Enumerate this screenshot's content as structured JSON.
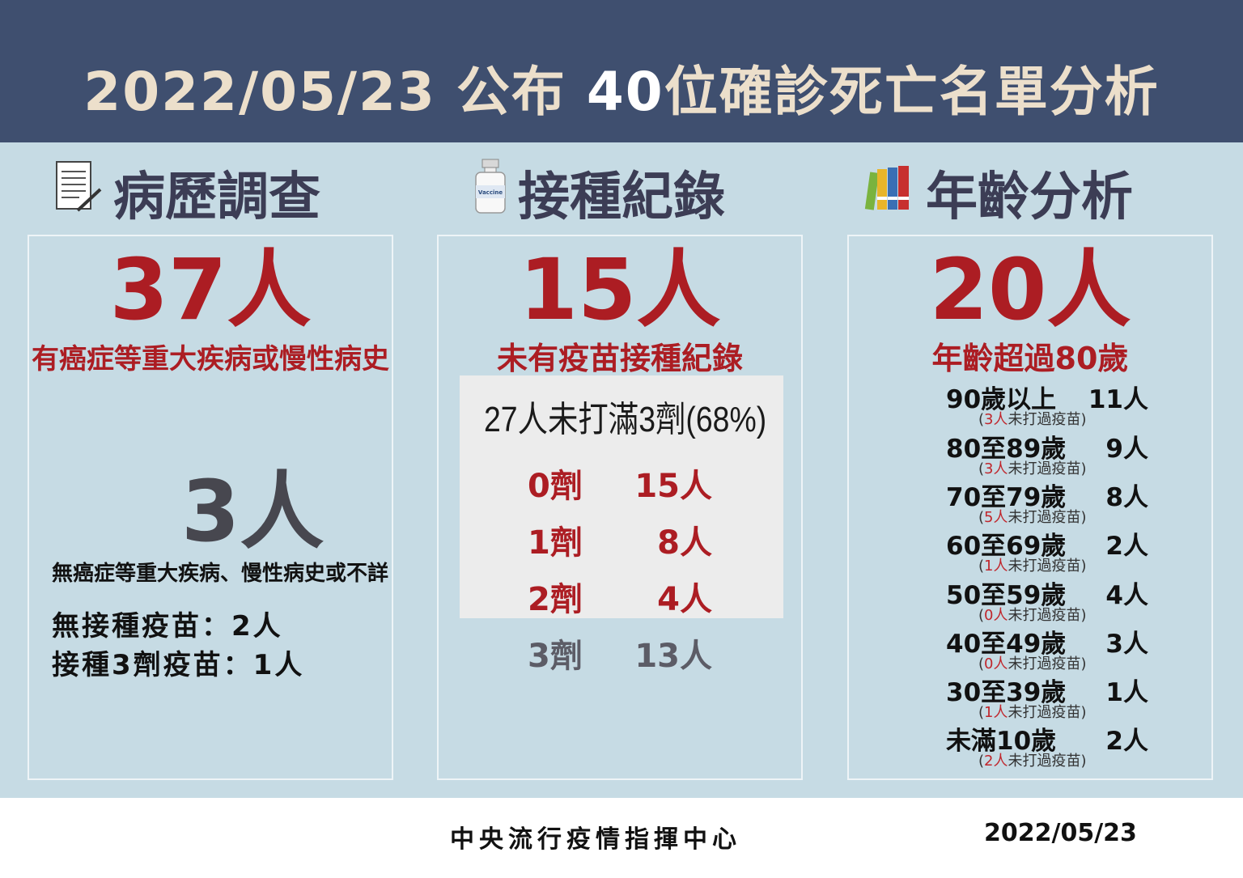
{
  "header": {
    "date": "2022/05/23",
    "pub": "公布",
    "count": "40",
    "rest": "位確診死亡名單分析"
  },
  "col1": {
    "title": "病歷調查",
    "big1": "37人",
    "sub1": "有癌症等重大疾病或慢性病史",
    "big2": "3人",
    "sub2": "無癌症等重大疾病、慢性病史或不詳",
    "line1": "無接種疫苗：2人",
    "line2": "接種3劑疫苗：1人"
  },
  "col2": {
    "title": "接種紀錄",
    "icon_label": "Vaccine",
    "big": "15人",
    "sub": "未有疫苗接種紀錄",
    "box_head": "27人未打滿3劑(68%)",
    "doses": [
      {
        "label": "0劑",
        "value": "15人"
      },
      {
        "label": "1劑",
        "value": "8人"
      },
      {
        "label": "2劑",
        "value": "4人"
      },
      {
        "label": "3劑",
        "value": "13人"
      }
    ]
  },
  "col3": {
    "title": "年齡分析",
    "big": "20人",
    "sub": "年齡超過80歲",
    "note_suffix": "未打過疫苗",
    "ages": [
      {
        "label": "90歲以上",
        "value": "11人",
        "unvax": "3人"
      },
      {
        "label": "80至89歲",
        "value": "9人",
        "unvax": "3人"
      },
      {
        "label": "70至79歲",
        "value": "8人",
        "unvax": "5人"
      },
      {
        "label": "60至69歲",
        "value": "2人",
        "unvax": "1人"
      },
      {
        "label": "50至59歲",
        "value": "4人",
        "unvax": "0人"
      },
      {
        "label": "40至49歲",
        "value": "3人",
        "unvax": "0人"
      },
      {
        "label": "30至39歲",
        "value": "1人",
        "unvax": "1人"
      },
      {
        "label": "未滿10歲",
        "value": "2人",
        "unvax": "2人"
      }
    ]
  },
  "footer": {
    "org": "中央流行疫情指揮中心",
    "date": "2022/05/23"
  },
  "colors": {
    "header_bg": "#3f4f6f",
    "panel_bg": "#c6dbe4",
    "red": "#ac1d23",
    "title_text": "#ecdfcb"
  }
}
